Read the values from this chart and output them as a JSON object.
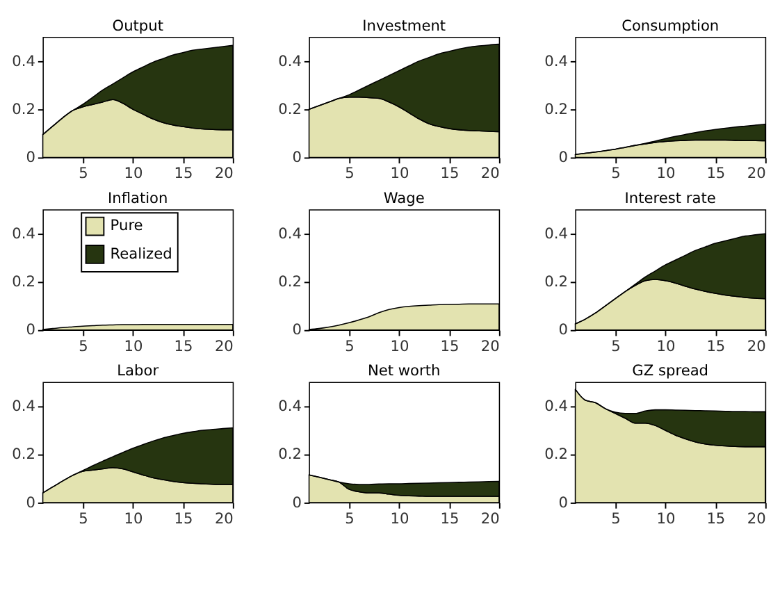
{
  "chart_data": [
    {
      "type": "area",
      "stacked": true,
      "title": "Output",
      "x": [
        1,
        2,
        3,
        4,
        5,
        6,
        7,
        8,
        9,
        10,
        11,
        12,
        13,
        14,
        15,
        16,
        17,
        18,
        19,
        20
      ],
      "xlim": [
        1,
        20
      ],
      "xticks": [
        5,
        10,
        15,
        20
      ],
      "ylim": [
        0,
        0.5
      ],
      "yticks": [
        0,
        0.2,
        0.4
      ],
      "legend": false,
      "series": [
        {
          "color": "#e3e3b0",
          "values": [
            0.095,
            0.13,
            0.165,
            0.195,
            0.21,
            0.22,
            0.23,
            0.24,
            0.225,
            0.2,
            0.18,
            0.16,
            0.145,
            0.135,
            0.128,
            0.122,
            0.118,
            0.116,
            0.115,
            0.115
          ]
        },
        {
          "color": "#263510",
          "values": [
            0,
            0,
            0,
            0,
            0.01,
            0.03,
            0.05,
            0.065,
            0.105,
            0.155,
            0.195,
            0.235,
            0.265,
            0.29,
            0.307,
            0.323,
            0.332,
            0.339,
            0.345,
            0.35
          ]
        }
      ]
    },
    {
      "type": "area",
      "stacked": true,
      "title": "Investment",
      "x": [
        1,
        2,
        3,
        4,
        5,
        6,
        7,
        8,
        9,
        10,
        11,
        12,
        13,
        14,
        15,
        16,
        17,
        18,
        19,
        20
      ],
      "xlim": [
        1,
        20
      ],
      "xticks": [
        5,
        10,
        15,
        20
      ],
      "ylim": [
        0,
        0.5
      ],
      "yticks": [
        0,
        0.2,
        0.4
      ],
      "legend": false,
      "series": [
        {
          "color": "#e3e3b0",
          "values": [
            0.2,
            0.215,
            0.23,
            0.245,
            0.25,
            0.25,
            0.248,
            0.245,
            0.23,
            0.21,
            0.185,
            0.16,
            0.14,
            0.128,
            0.12,
            0.115,
            0.112,
            0.11,
            0.108,
            0.107
          ]
        },
        {
          "color": "#263510",
          "values": [
            0,
            0,
            0,
            0,
            0.01,
            0.03,
            0.052,
            0.075,
            0.11,
            0.15,
            0.195,
            0.24,
            0.275,
            0.302,
            0.32,
            0.335,
            0.346,
            0.353,
            0.359,
            0.363
          ]
        }
      ]
    },
    {
      "type": "area",
      "stacked": true,
      "title": "Consumption",
      "x": [
        1,
        2,
        3,
        4,
        5,
        6,
        7,
        8,
        9,
        10,
        11,
        12,
        13,
        14,
        15,
        16,
        17,
        18,
        19,
        20
      ],
      "xlim": [
        1,
        20
      ],
      "xticks": [
        5,
        10,
        15,
        20
      ],
      "ylim": [
        0,
        0.5
      ],
      "yticks": [
        0,
        0.2,
        0.4
      ],
      "legend": false,
      "series": [
        {
          "color": "#e3e3b0",
          "values": [
            0.012,
            0.017,
            0.022,
            0.028,
            0.034,
            0.042,
            0.05,
            0.056,
            0.062,
            0.066,
            0.069,
            0.071,
            0.072,
            0.072,
            0.072,
            0.072,
            0.071,
            0.07,
            0.07,
            0.069
          ]
        },
        {
          "color": "#263510",
          "values": [
            0,
            0,
            0,
            0,
            0,
            0,
            0,
            0.002,
            0.006,
            0.012,
            0.018,
            0.024,
            0.031,
            0.038,
            0.044,
            0.049,
            0.055,
            0.06,
            0.064,
            0.069
          ]
        }
      ]
    },
    {
      "type": "area",
      "stacked": true,
      "title": "Inflation",
      "x": [
        1,
        2,
        3,
        4,
        5,
        6,
        7,
        8,
        9,
        10,
        11,
        12,
        13,
        14,
        15,
        16,
        17,
        18,
        19,
        20
      ],
      "xlim": [
        1,
        20
      ],
      "xticks": [
        5,
        10,
        15,
        20
      ],
      "ylim": [
        0,
        0.5
      ],
      "yticks": [
        0,
        0.2,
        0.4
      ],
      "legend": "top",
      "series": [
        {
          "name": "Pure",
          "color": "#e3e3b0",
          "values": [
            0.002,
            0.006,
            0.01,
            0.013,
            0.016,
            0.018,
            0.02,
            0.021,
            0.022,
            0.022,
            0.023,
            0.023,
            0.023,
            0.023,
            0.023,
            0.023,
            0.023,
            0.023,
            0.023,
            0.023
          ]
        },
        {
          "name": "Realized",
          "color": "#263510",
          "values": [
            null,
            null,
            null,
            null,
            null,
            null,
            null,
            null,
            null,
            null,
            null,
            null,
            null,
            null,
            null,
            null,
            null,
            null,
            null,
            null
          ]
        }
      ]
    },
    {
      "type": "area",
      "stacked": true,
      "title": "Wage",
      "x": [
        1,
        2,
        3,
        4,
        5,
        6,
        7,
        8,
        9,
        10,
        11,
        12,
        13,
        14,
        15,
        16,
        17,
        18,
        19,
        20
      ],
      "xlim": [
        1,
        20
      ],
      "xticks": [
        5,
        10,
        15,
        20
      ],
      "ylim": [
        0,
        0.5
      ],
      "yticks": [
        0,
        0.2,
        0.4
      ],
      "legend": false,
      "series": [
        {
          "color": "#e3e3b0",
          "values": [
            0.002,
            0.006,
            0.012,
            0.02,
            0.03,
            0.042,
            0.055,
            0.072,
            0.085,
            0.093,
            0.098,
            0.101,
            0.103,
            0.105,
            0.106,
            0.107,
            0.108,
            0.108,
            0.108,
            0.108
          ]
        }
      ]
    },
    {
      "type": "area",
      "stacked": true,
      "title": "Interest rate",
      "x": [
        1,
        2,
        3,
        4,
        5,
        6,
        7,
        8,
        9,
        10,
        11,
        12,
        13,
        14,
        15,
        16,
        17,
        18,
        19,
        20
      ],
      "xlim": [
        1,
        20
      ],
      "xticks": [
        5,
        10,
        15,
        20
      ],
      "ylim": [
        0,
        0.5
      ],
      "yticks": [
        0,
        0.2,
        0.4
      ],
      "legend": false,
      "series": [
        {
          "color": "#e3e3b0",
          "values": [
            0.025,
            0.045,
            0.07,
            0.1,
            0.13,
            0.16,
            0.185,
            0.205,
            0.21,
            0.205,
            0.195,
            0.182,
            0.17,
            0.16,
            0.152,
            0.145,
            0.14,
            0.135,
            0.132,
            0.13
          ]
        },
        {
          "color": "#263510",
          "values": [
            0,
            0,
            0,
            0,
            0,
            0,
            0.005,
            0.015,
            0.035,
            0.065,
            0.095,
            0.128,
            0.16,
            0.185,
            0.208,
            0.225,
            0.24,
            0.255,
            0.263,
            0.27
          ]
        }
      ]
    },
    {
      "type": "area",
      "stacked": true,
      "title": "Labor",
      "x": [
        1,
        2,
        3,
        4,
        5,
        6,
        7,
        8,
        9,
        10,
        11,
        12,
        13,
        14,
        15,
        16,
        17,
        18,
        19,
        20
      ],
      "xlim": [
        1,
        20
      ],
      "xticks": [
        5,
        10,
        15,
        20
      ],
      "ylim": [
        0,
        0.5
      ],
      "yticks": [
        0,
        0.2,
        0.4
      ],
      "legend": false,
      "series": [
        {
          "color": "#e3e3b0",
          "values": [
            0.04,
            0.065,
            0.09,
            0.113,
            0.13,
            0.135,
            0.14,
            0.145,
            0.14,
            0.128,
            0.115,
            0.103,
            0.095,
            0.088,
            0.083,
            0.08,
            0.078,
            0.076,
            0.075,
            0.075
          ]
        },
        {
          "color": "#263510",
          "values": [
            0,
            0,
            0,
            0,
            0.003,
            0.018,
            0.032,
            0.045,
            0.068,
            0.097,
            0.125,
            0.152,
            0.173,
            0.19,
            0.204,
            0.214,
            0.222,
            0.228,
            0.232,
            0.235
          ]
        }
      ]
    },
    {
      "type": "area",
      "stacked": true,
      "title": "Net worth",
      "x": [
        1,
        2,
        3,
        4,
        5,
        6,
        7,
        8,
        9,
        10,
        11,
        12,
        13,
        14,
        15,
        16,
        17,
        18,
        19,
        20
      ],
      "xlim": [
        1,
        20
      ],
      "xticks": [
        5,
        10,
        15,
        20
      ],
      "ylim": [
        0,
        0.5
      ],
      "yticks": [
        0,
        0.2,
        0.4
      ],
      "legend": false,
      "series": [
        {
          "color": "#e3e3b0",
          "values": [
            0.115,
            0.105,
            0.095,
            0.085,
            0.055,
            0.045,
            0.04,
            0.04,
            0.035,
            0.03,
            0.028,
            0.027,
            0.026,
            0.026,
            0.026,
            0.026,
            0.026,
            0.026,
            0.026,
            0.026
          ]
        },
        {
          "color": "#263510",
          "values": [
            0,
            0,
            0,
            0,
            0.023,
            0.03,
            0.035,
            0.037,
            0.043,
            0.048,
            0.051,
            0.053,
            0.055,
            0.056,
            0.057,
            0.058,
            0.059,
            0.06,
            0.061,
            0.062
          ]
        }
      ]
    },
    {
      "type": "area",
      "stacked": true,
      "title": "GZ spread",
      "x": [
        1,
        2,
        3,
        4,
        5,
        6,
        7,
        8,
        9,
        10,
        11,
        12,
        13,
        14,
        15,
        16,
        17,
        18,
        19,
        20
      ],
      "xlim": [
        1,
        20
      ],
      "xticks": [
        5,
        10,
        15,
        20
      ],
      "ylim": [
        0,
        0.5
      ],
      "yticks": [
        0,
        0.2,
        0.4
      ],
      "legend": false,
      "series": [
        {
          "color": "#e3e3b0",
          "values": [
            0.47,
            0.425,
            0.415,
            0.39,
            0.37,
            0.35,
            0.33,
            0.33,
            0.32,
            0.3,
            0.28,
            0.265,
            0.252,
            0.243,
            0.238,
            0.235,
            0.233,
            0.232,
            0.232,
            0.232
          ]
        },
        {
          "color": "#263510",
          "values": [
            0,
            0,
            0,
            0,
            0.005,
            0.02,
            0.04,
            0.05,
            0.065,
            0.085,
            0.104,
            0.118,
            0.13,
            0.138,
            0.142,
            0.144,
            0.145,
            0.146,
            0.145,
            0.145
          ]
        }
      ]
    }
  ]
}
